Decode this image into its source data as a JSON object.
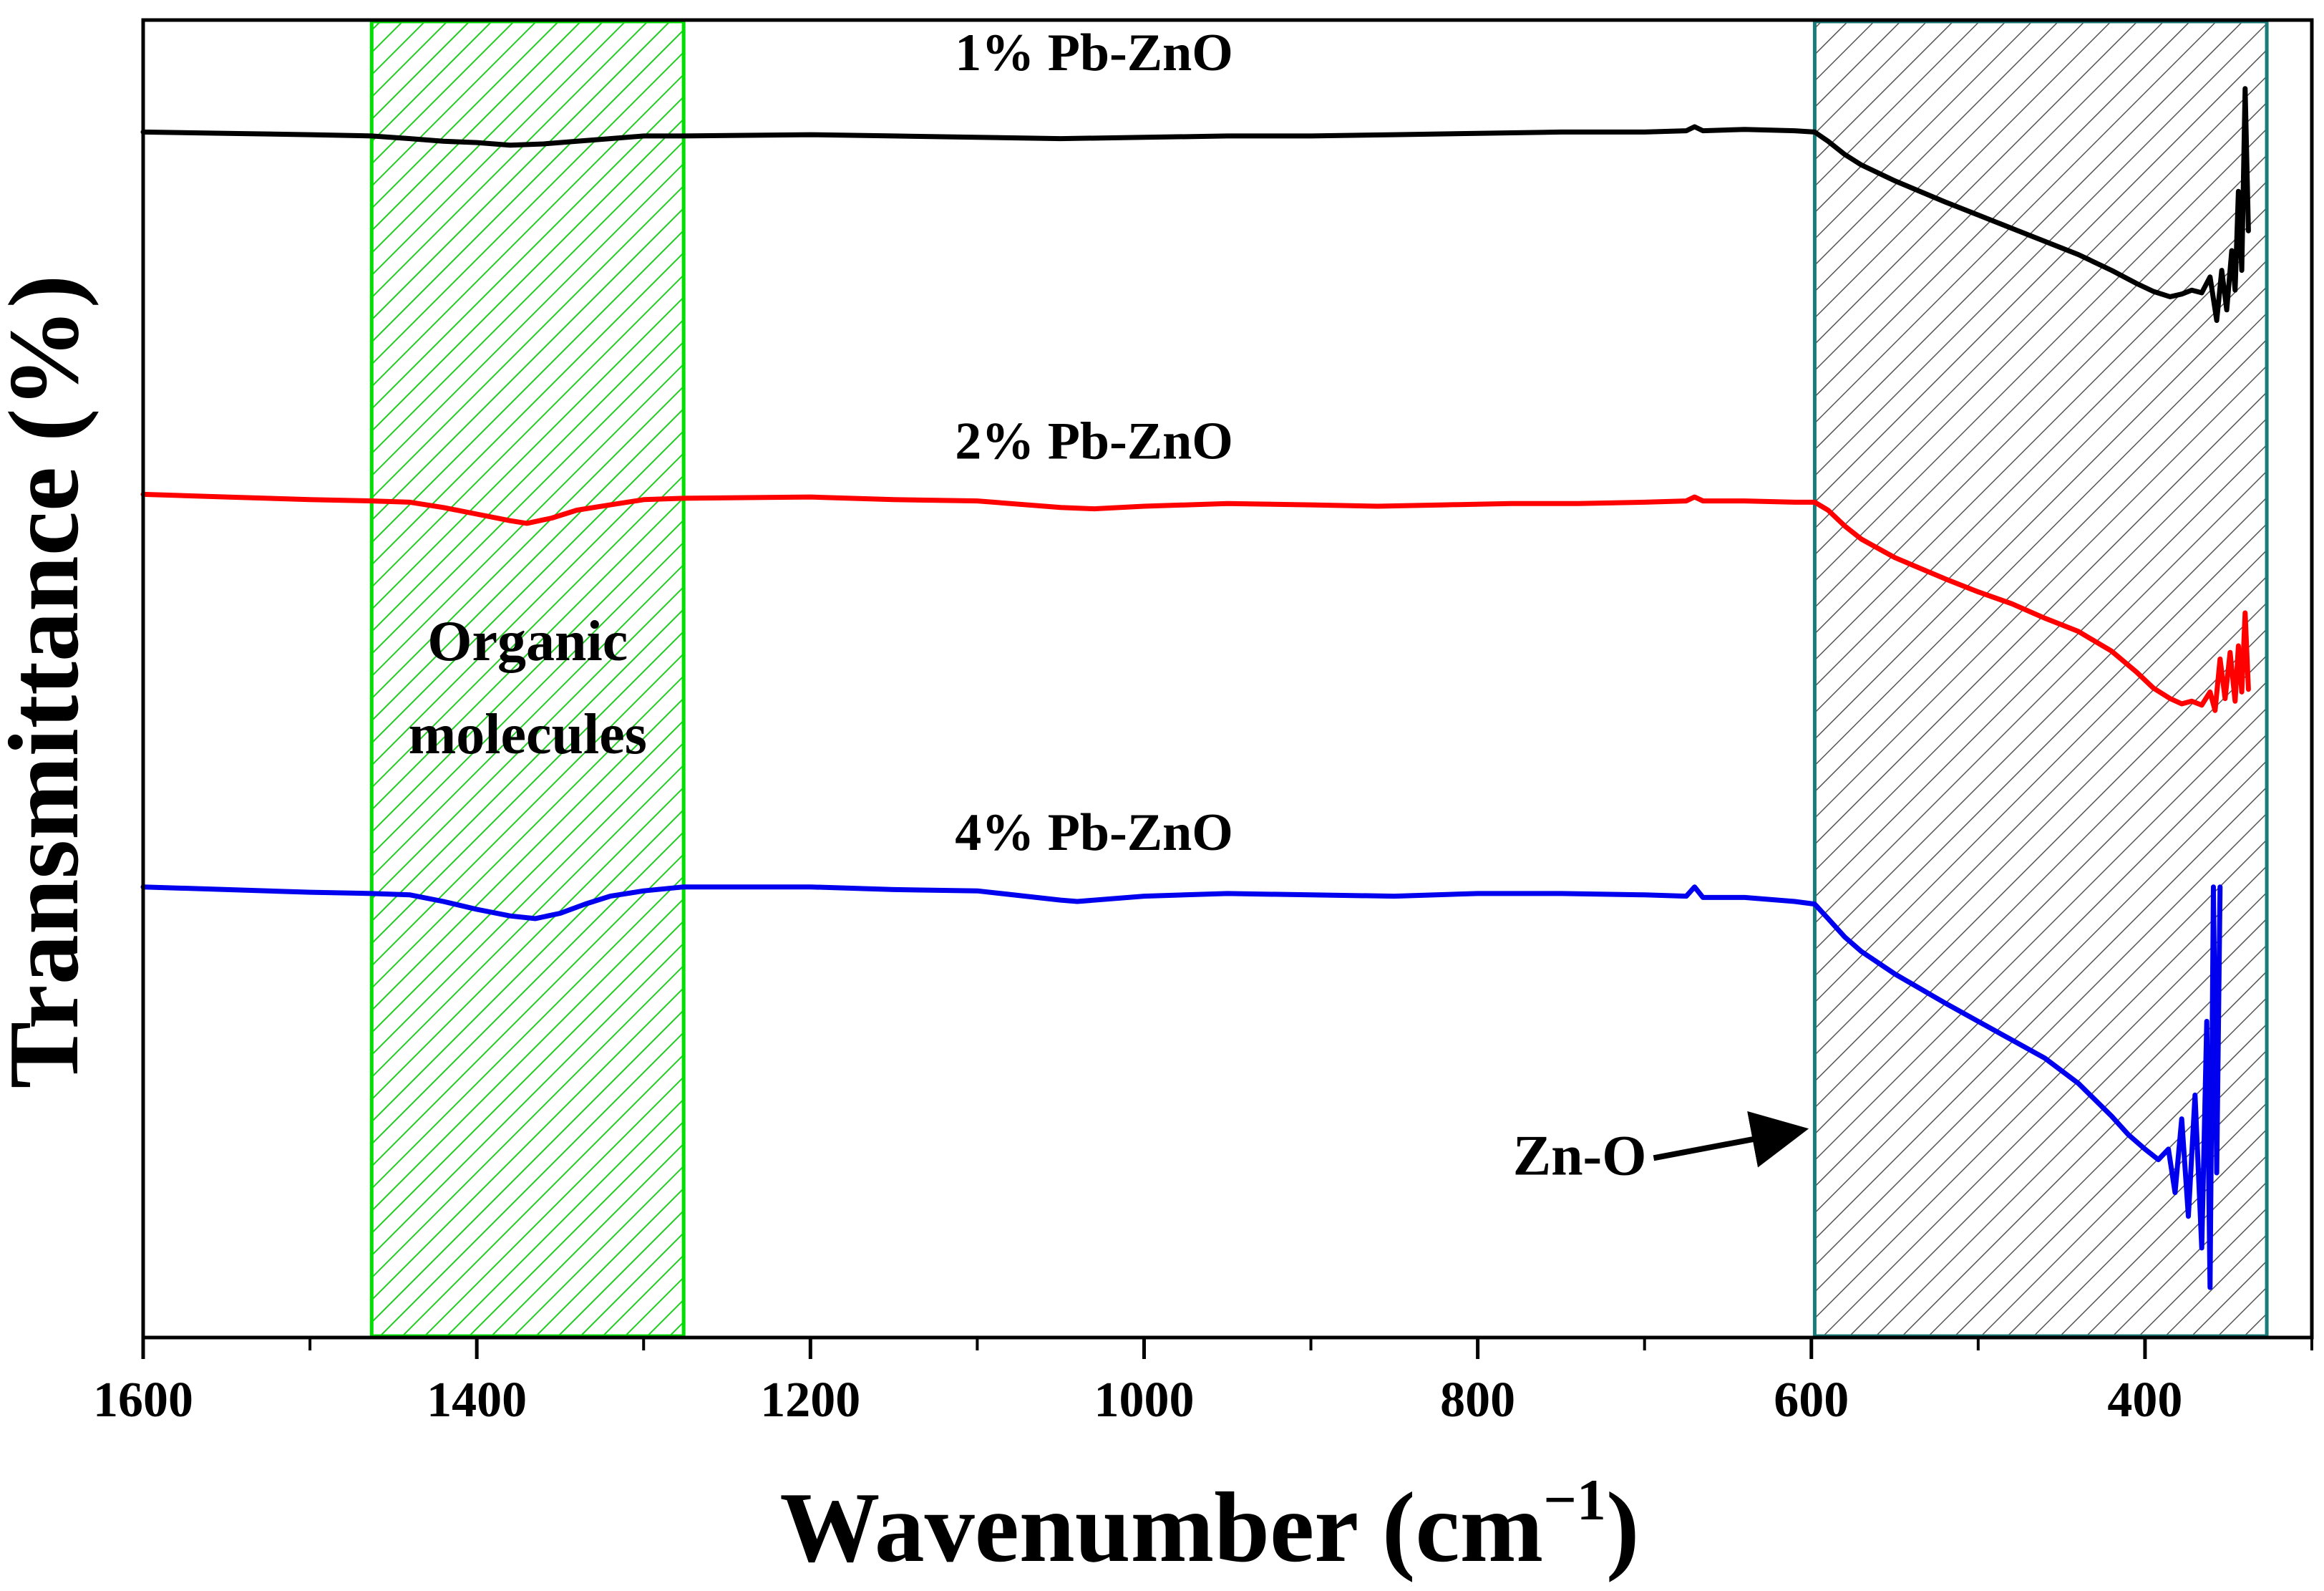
{
  "chart_data": {
    "type": "line",
    "title": "",
    "xlabel": "Wavenumber (cm",
    "xlabel_sup": "−1",
    "xlabel_close": ")",
    "ylabel": "Transmittance (%)",
    "xlim": [
      1600,
      300
    ],
    "ylim": [
      0,
      100
    ],
    "x_reversed": true,
    "y_ticks_shown": false,
    "x_ticks": [
      1600,
      1400,
      1200,
      1000,
      800,
      600,
      400
    ],
    "x_tick_labels": [
      "1600",
      "1400",
      "1200",
      "1000",
      "800",
      "600",
      "400"
    ],
    "x_minor_ticks": [
      1500,
      1300,
      1100,
      900,
      700,
      500,
      300
    ],
    "regions": [
      {
        "name": "organic",
        "label_lines": [
          "Organic",
          "molecules"
        ],
        "x_from": 1463,
        "x_to": 1276,
        "color": "#00e000",
        "hatch": "#22cc22"
      },
      {
        "name": "zno",
        "label_lines": [],
        "x_from": 598,
        "x_to": 327,
        "color": "#1b7a7a",
        "hatch": "#444444"
      }
    ],
    "annotations": [
      {
        "text": "Zn-O",
        "arrow_to_x": 598,
        "arrow_to_y": 15.8
      }
    ],
    "series": [
      {
        "name": "1% Pb-ZnO",
        "color": "#000000",
        "label_x": 1030,
        "label_y": 96.2,
        "points": [
          [
            1600,
            91.5
          ],
          [
            1550,
            91.4
          ],
          [
            1500,
            91.3
          ],
          [
            1463,
            91.2
          ],
          [
            1440,
            91.0
          ],
          [
            1420,
            90.8
          ],
          [
            1400,
            90.7
          ],
          [
            1380,
            90.5
          ],
          [
            1360,
            90.6
          ],
          [
            1340,
            90.8
          ],
          [
            1320,
            91.0
          ],
          [
            1300,
            91.2
          ],
          [
            1276,
            91.2
          ],
          [
            1200,
            91.3
          ],
          [
            1150,
            91.2
          ],
          [
            1100,
            91.1
          ],
          [
            1050,
            91.0
          ],
          [
            1000,
            91.1
          ],
          [
            950,
            91.2
          ],
          [
            900,
            91.2
          ],
          [
            850,
            91.3
          ],
          [
            800,
            91.4
          ],
          [
            750,
            91.5
          ],
          [
            700,
            91.5
          ],
          [
            675,
            91.6
          ],
          [
            670,
            91.9
          ],
          [
            665,
            91.6
          ],
          [
            640,
            91.7
          ],
          [
            610,
            91.6
          ],
          [
            598,
            91.5
          ],
          [
            590,
            90.8
          ],
          [
            580,
            89.8
          ],
          [
            570,
            89.0
          ],
          [
            550,
            87.8
          ],
          [
            520,
            86.2
          ],
          [
            500,
            85.2
          ],
          [
            480,
            84.2
          ],
          [
            460,
            83.2
          ],
          [
            440,
            82.2
          ],
          [
            420,
            81.0
          ],
          [
            405,
            80.0
          ],
          [
            395,
            79.4
          ],
          [
            385,
            79.0
          ],
          [
            378,
            79.2
          ],
          [
            372,
            79.5
          ],
          [
            366,
            79.3
          ],
          [
            361,
            80.5
          ],
          [
            357,
            77.2
          ],
          [
            354,
            81.0
          ],
          [
            351,
            78.0
          ],
          [
            348,
            82.5
          ],
          [
            346,
            79.5
          ],
          [
            344,
            87.0
          ],
          [
            342,
            81.0
          ],
          [
            340,
            94.8
          ],
          [
            338,
            84.0
          ]
        ]
      },
      {
        "name": "2% Pb-ZnO",
        "color": "#ff0000",
        "label_x": 1030,
        "label_y": 66.7,
        "points": [
          [
            1600,
            64.0
          ],
          [
            1550,
            63.8
          ],
          [
            1500,
            63.6
          ],
          [
            1463,
            63.5
          ],
          [
            1440,
            63.4
          ],
          [
            1420,
            63.0
          ],
          [
            1400,
            62.5
          ],
          [
            1380,
            62.0
          ],
          [
            1370,
            61.8
          ],
          [
            1355,
            62.2
          ],
          [
            1340,
            62.8
          ],
          [
            1320,
            63.2
          ],
          [
            1300,
            63.6
          ],
          [
            1276,
            63.7
          ],
          [
            1200,
            63.8
          ],
          [
            1150,
            63.6
          ],
          [
            1100,
            63.5
          ],
          [
            1050,
            63.0
          ],
          [
            1030,
            62.9
          ],
          [
            1000,
            63.1
          ],
          [
            950,
            63.3
          ],
          [
            900,
            63.2
          ],
          [
            860,
            63.1
          ],
          [
            820,
            63.2
          ],
          [
            780,
            63.3
          ],
          [
            740,
            63.3
          ],
          [
            700,
            63.4
          ],
          [
            675,
            63.5
          ],
          [
            670,
            63.8
          ],
          [
            665,
            63.5
          ],
          [
            640,
            63.5
          ],
          [
            610,
            63.4
          ],
          [
            598,
            63.4
          ],
          [
            590,
            62.8
          ],
          [
            580,
            61.6
          ],
          [
            570,
            60.6
          ],
          [
            550,
            59.2
          ],
          [
            520,
            57.6
          ],
          [
            500,
            56.6
          ],
          [
            480,
            55.7
          ],
          [
            460,
            54.6
          ],
          [
            440,
            53.6
          ],
          [
            420,
            52.1
          ],
          [
            405,
            50.5
          ],
          [
            395,
            49.3
          ],
          [
            385,
            48.5
          ],
          [
            378,
            48.1
          ],
          [
            372,
            48.3
          ],
          [
            366,
            48.0
          ],
          [
            361,
            49.0
          ],
          [
            358,
            47.6
          ],
          [
            355,
            51.5
          ],
          [
            352,
            48.5
          ],
          [
            349,
            52.0
          ],
          [
            346,
            48.3
          ],
          [
            344,
            52.5
          ],
          [
            342,
            49.0
          ],
          [
            340,
            55.0
          ],
          [
            338,
            49.2
          ]
        ]
      },
      {
        "name": "4% Pb-ZnO",
        "color": "#0000ee",
        "label_x": 1030,
        "label_y": 37.0,
        "points": [
          [
            1600,
            34.2
          ],
          [
            1550,
            34.0
          ],
          [
            1500,
            33.8
          ],
          [
            1463,
            33.7
          ],
          [
            1440,
            33.6
          ],
          [
            1420,
            33.1
          ],
          [
            1400,
            32.5
          ],
          [
            1380,
            32.0
          ],
          [
            1365,
            31.8
          ],
          [
            1350,
            32.2
          ],
          [
            1335,
            32.9
          ],
          [
            1320,
            33.5
          ],
          [
            1300,
            33.9
          ],
          [
            1276,
            34.2
          ],
          [
            1200,
            34.2
          ],
          [
            1150,
            34.0
          ],
          [
            1100,
            33.9
          ],
          [
            1050,
            33.2
          ],
          [
            1040,
            33.1
          ],
          [
            1000,
            33.5
          ],
          [
            950,
            33.7
          ],
          [
            900,
            33.6
          ],
          [
            850,
            33.5
          ],
          [
            800,
            33.7
          ],
          [
            750,
            33.7
          ],
          [
            700,
            33.6
          ],
          [
            675,
            33.5
          ],
          [
            670,
            34.2
          ],
          [
            665,
            33.4
          ],
          [
            640,
            33.4
          ],
          [
            610,
            33.1
          ],
          [
            598,
            32.9
          ],
          [
            590,
            31.8
          ],
          [
            580,
            30.4
          ],
          [
            570,
            29.3
          ],
          [
            550,
            27.6
          ],
          [
            520,
            25.4
          ],
          [
            500,
            24.0
          ],
          [
            480,
            22.6
          ],
          [
            460,
            21.2
          ],
          [
            440,
            19.3
          ],
          [
            420,
            16.8
          ],
          [
            410,
            15.4
          ],
          [
            400,
            14.3
          ],
          [
            392,
            13.5
          ],
          [
            386,
            14.3
          ],
          [
            382,
            11.0
          ],
          [
            378,
            16.6
          ],
          [
            374,
            9.2
          ],
          [
            370,
            18.4
          ],
          [
            366,
            6.8
          ],
          [
            363,
            24.0
          ],
          [
            361,
            3.8
          ],
          [
            359,
            34.2
          ],
          [
            357,
            12.5
          ],
          [
            355,
            34.2
          ]
        ]
      }
    ]
  }
}
